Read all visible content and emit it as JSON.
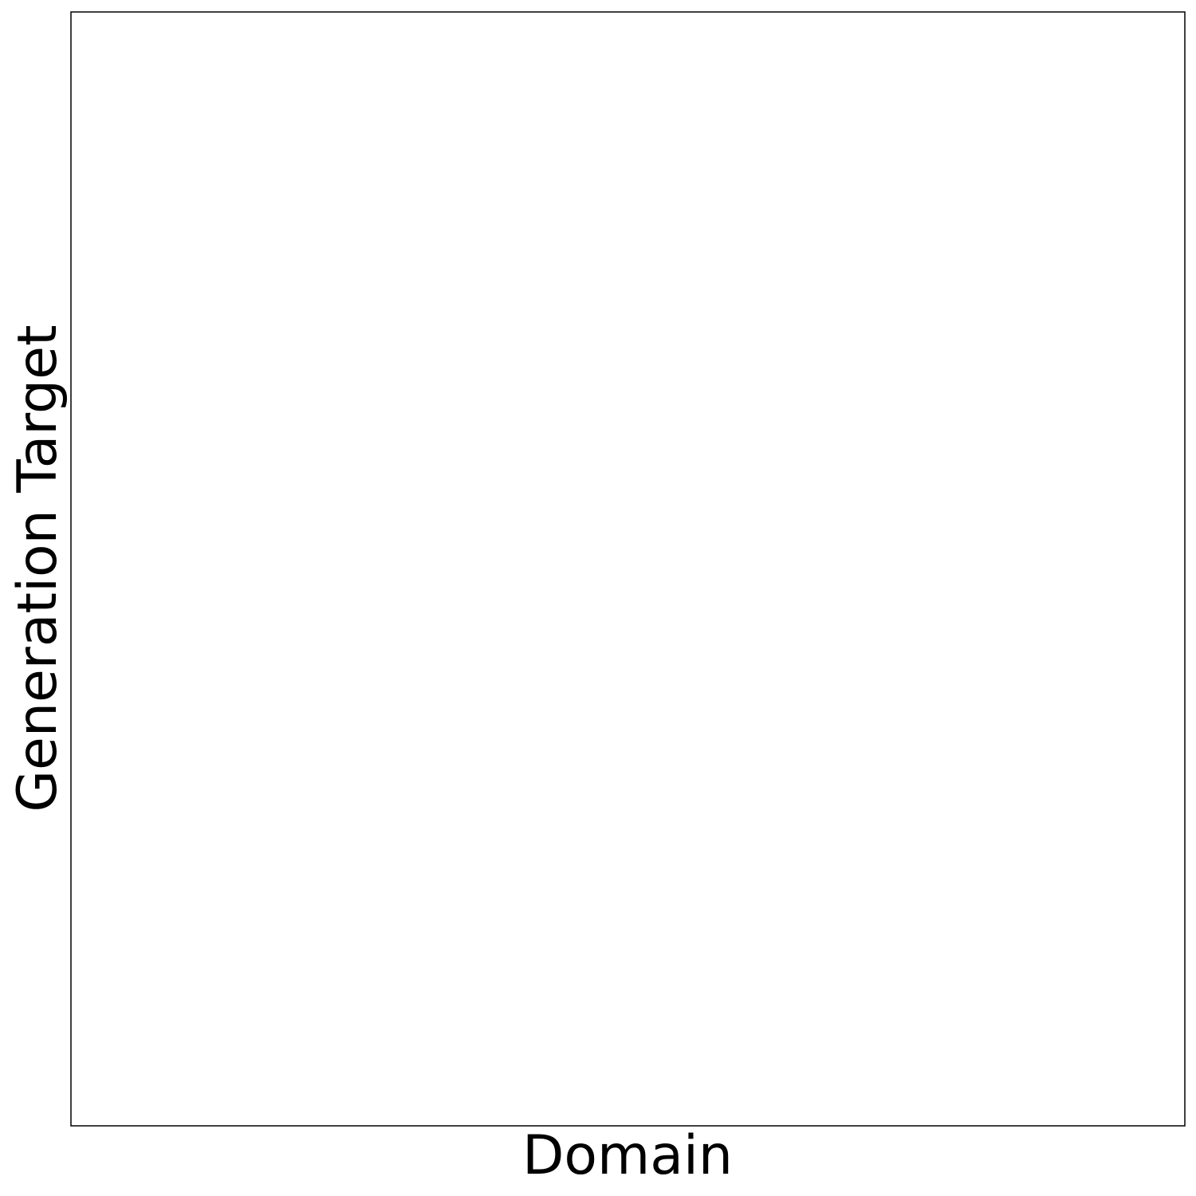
{
  "chart_data": {
    "type": "scatter",
    "title": "",
    "xlabel": "Domain",
    "ylabel": "Generation Target",
    "series": [],
    "grid": false,
    "legend": "none",
    "ticks": false,
    "colors": {
      "background": "#ffffff",
      "frame": "#000000",
      "text": "#000000"
    }
  }
}
